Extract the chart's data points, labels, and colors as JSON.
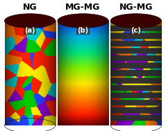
{
  "title_a": "NG",
  "title_b": "MG-MG",
  "title_c": "NG-MG",
  "label_a": "(a)",
  "label_b": "(b)",
  "label_c": "(c)",
  "bg_color": "#000000",
  "title_color": "#000000",
  "cylinder_dark_top": "#3a0000",
  "ng_colors": [
    "#ff0000",
    "#00aa00",
    "#0000ff",
    "#ffff00",
    "#ff8800",
    "#00ffff"
  ],
  "mg_gradient_top": "#4a0000",
  "mg_gradient_bottom": "#0000cc",
  "font_size_title": 9,
  "font_size_label": 7
}
